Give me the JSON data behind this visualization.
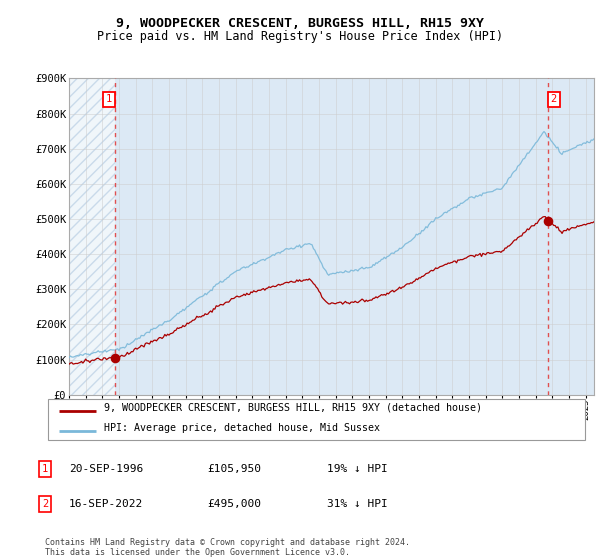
{
  "title": "9, WOODPECKER CRESCENT, BURGESS HILL, RH15 9XY",
  "subtitle": "Price paid vs. HM Land Registry's House Price Index (HPI)",
  "sale1_year": 1996.75,
  "sale1_price": 105950,
  "sale2_year": 2022.75,
  "sale2_price": 495000,
  "legend_line1": "9, WOODPECKER CRESCENT, BURGESS HILL, RH15 9XY (detached house)",
  "legend_line2": "HPI: Average price, detached house, Mid Sussex",
  "table_rows": [
    [
      "1",
      "20-SEP-1996",
      "£105,950",
      "19% ↓ HPI"
    ],
    [
      "2",
      "16-SEP-2022",
      "£495,000",
      "31% ↓ HPI"
    ]
  ],
  "footer": "Contains HM Land Registry data © Crown copyright and database right 2024.\nThis data is licensed under the Open Government Licence v3.0.",
  "hpi_color": "#7ab8d9",
  "price_color": "#aa0000",
  "dashed_color": "#e05050",
  "grid_color": "#cccccc",
  "bg_chart": "#dce9f5",
  "bg_white": "#ffffff",
  "ylim": [
    0,
    900000
  ],
  "yticks": [
    0,
    100000,
    200000,
    300000,
    400000,
    500000,
    600000,
    700000,
    800000,
    900000
  ],
  "ytick_labels": [
    "£0",
    "£100K",
    "£200K",
    "£300K",
    "£400K",
    "£500K",
    "£600K",
    "£700K",
    "£800K",
    "£900K"
  ],
  "xmin": 1994,
  "xmax": 2025.5
}
